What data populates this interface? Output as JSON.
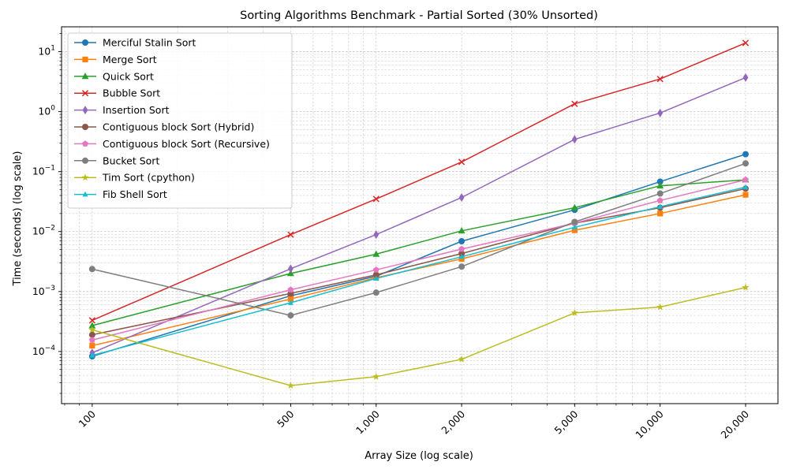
{
  "chart_data": {
    "type": "line",
    "title": "Sorting Algorithms Benchmark - Partial Sorted (30% Unsorted)",
    "xlabel": "Array Size (log scale)",
    "ylabel": "Time (seconds) (log scale)",
    "x_scale": "log",
    "y_scale": "log",
    "grid": true,
    "legend_position": "upper-left",
    "x": [
      100,
      500,
      1000,
      2000,
      5000,
      10000,
      20000
    ],
    "x_tick_labels": [
      "100",
      "500",
      "1,000",
      "2,000",
      "5,000",
      "10,000",
      "20,000"
    ],
    "y_tick_labels": [
      "10^-4",
      "10^-3",
      "10^-2",
      "10^-1",
      "10^0",
      "10^1"
    ],
    "xlim": [
      78,
      26000
    ],
    "ylim": [
      1.35e-05,
      26
    ],
    "series": [
      {
        "name": "Merciful Stalin Sort",
        "color": "#1f77b4",
        "marker": "circle",
        "values": [
          8.3e-05,
          0.00085,
          0.0018,
          0.0069,
          0.023,
          0.068,
          0.195
        ]
      },
      {
        "name": "Merge Sort",
        "color": "#ff7f0e",
        "marker": "square",
        "values": [
          0.000125,
          0.00075,
          0.0017,
          0.0035,
          0.0105,
          0.02,
          0.041
        ]
      },
      {
        "name": "Quick Sort",
        "color": "#2ca02c",
        "marker": "triangle-up",
        "values": [
          0.00027,
          0.002,
          0.0042,
          0.0103,
          0.025,
          0.058,
          0.073
        ]
      },
      {
        "name": "Bubble Sort",
        "color": "#d62728",
        "marker": "x",
        "values": [
          0.00033,
          0.0089,
          0.035,
          0.145,
          1.35,
          3.5,
          14.0
        ]
      },
      {
        "name": "Insertion Sort",
        "color": "#9467bd",
        "marker": "diamond",
        "values": [
          9.5e-05,
          0.0024,
          0.0089,
          0.037,
          0.345,
          0.95,
          3.7
        ]
      },
      {
        "name": "Contiguous block Sort (Hybrid)",
        "color": "#8c564b",
        "marker": "circle",
        "values": [
          0.00019,
          0.00093,
          0.0019,
          0.0043,
          0.0138,
          0.025,
          0.052
        ]
      },
      {
        "name": "Contiguous block Sort (Recursive)",
        "color": "#e377c2",
        "marker": "pentagon",
        "values": [
          0.000155,
          0.00107,
          0.0023,
          0.0051,
          0.0138,
          0.033,
          0.073
        ]
      },
      {
        "name": "Bucket Sort",
        "color": "#7f7f7f",
        "marker": "circle",
        "values": [
          0.00237,
          0.0004,
          0.00096,
          0.0026,
          0.0145,
          0.043,
          0.137
        ]
      },
      {
        "name": "Tim Sort (cpython)",
        "color": "#bcbd22",
        "marker": "star",
        "values": [
          0.00023,
          2.7e-05,
          3.8e-05,
          7.4e-05,
          0.00044,
          0.00055,
          0.00117
        ]
      },
      {
        "name": "Fib Shell Sort",
        "color": "#17becf",
        "marker": "triangle-up-small",
        "values": [
          8.6e-05,
          0.00065,
          0.00165,
          0.0038,
          0.0118,
          0.026,
          0.055
        ]
      }
    ]
  }
}
